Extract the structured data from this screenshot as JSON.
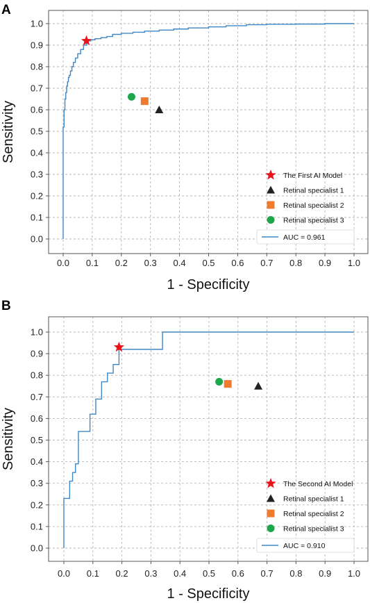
{
  "chart_data": [
    {
      "type": "line",
      "panel_label": "A",
      "xlabel": "1 - Specificity",
      "ylabel": "Sensitivity",
      "xlim": [
        0.0,
        1.0
      ],
      "ylim": [
        0.0,
        1.0
      ],
      "x_ticks": [
        "0.0",
        "0.1",
        "0.2",
        "0.3",
        "0.4",
        "0.5",
        "0.6",
        "0.7",
        "0.8",
        "0.9",
        "1.0"
      ],
      "y_ticks": [
        "0.0",
        "0.1",
        "0.2",
        "0.3",
        "0.4",
        "0.5",
        "0.6",
        "0.7",
        "0.8",
        "0.9",
        "1.0"
      ],
      "grid": true,
      "legend_position": "bottom-right",
      "roc_curve": {
        "name": "AUC = 0.961",
        "color": "#3f86c4",
        "x": [
          0.0,
          0.0,
          0.003,
          0.003,
          0.006,
          0.006,
          0.009,
          0.009,
          0.012,
          0.012,
          0.015,
          0.015,
          0.018,
          0.018,
          0.021,
          0.021,
          0.025,
          0.025,
          0.03,
          0.03,
          0.035,
          0.035,
          0.042,
          0.042,
          0.05,
          0.05,
          0.06,
          0.06,
          0.07,
          0.07,
          0.08,
          0.08,
          0.095,
          0.095,
          0.11,
          0.11,
          0.13,
          0.13,
          0.15,
          0.15,
          0.17,
          0.17,
          0.2,
          0.2,
          0.24,
          0.24,
          0.28,
          0.28,
          0.33,
          0.33,
          0.38,
          0.38,
          0.43,
          0.43,
          0.5,
          0.5,
          0.56,
          0.56,
          0.63,
          0.63,
          0.7,
          0.7,
          0.8,
          0.8,
          0.9,
          0.9,
          1.0
        ],
        "y": [
          0.0,
          0.52,
          0.52,
          0.6,
          0.6,
          0.65,
          0.65,
          0.68,
          0.68,
          0.71,
          0.71,
          0.73,
          0.73,
          0.75,
          0.75,
          0.76,
          0.76,
          0.78,
          0.78,
          0.8,
          0.8,
          0.82,
          0.82,
          0.84,
          0.84,
          0.86,
          0.86,
          0.88,
          0.88,
          0.9,
          0.9,
          0.92,
          0.92,
          0.925,
          0.925,
          0.93,
          0.93,
          0.935,
          0.935,
          0.94,
          0.94,
          0.95,
          0.95,
          0.955,
          0.955,
          0.96,
          0.96,
          0.965,
          0.965,
          0.97,
          0.97,
          0.975,
          0.975,
          0.98,
          0.98,
          0.985,
          0.985,
          0.99,
          0.99,
          0.995,
          0.995,
          0.997,
          0.997,
          0.998,
          0.998,
          1.0,
          1.0
        ]
      },
      "points": [
        {
          "name": "The First AI Model",
          "x": 0.08,
          "y": 0.92,
          "marker": "star",
          "color": "#e8141c"
        },
        {
          "name": "Retinal specialist 1",
          "x": 0.33,
          "y": 0.6,
          "marker": "triangle",
          "color": "#222222"
        },
        {
          "name": "Retinal specialist 2",
          "x": 0.28,
          "y": 0.64,
          "marker": "square",
          "color": "#ee7b30"
        },
        {
          "name": "Retinal specialist 3",
          "x": 0.235,
          "y": 0.66,
          "marker": "circle",
          "color": "#1ea64a"
        }
      ]
    },
    {
      "type": "line",
      "panel_label": "B",
      "xlabel": "1 - Specificity",
      "ylabel": "Sensitivity",
      "xlim": [
        0.0,
        1.0
      ],
      "ylim": [
        0.0,
        1.0
      ],
      "x_ticks": [
        "0.0",
        "0.1",
        "0.2",
        "0.3",
        "0.4",
        "0.5",
        "0.6",
        "0.7",
        "0.8",
        "0.9",
        "1.0"
      ],
      "y_ticks": [
        "0.0",
        "0.1",
        "0.2",
        "0.3",
        "0.4",
        "0.5",
        "0.6",
        "0.7",
        "0.8",
        "0.9",
        "1.0"
      ],
      "grid": true,
      "legend_position": "bottom-right",
      "roc_curve": {
        "name": "AUC = 0.910",
        "color": "#3f86c4",
        "x": [
          0.0,
          0.0,
          0.02,
          0.02,
          0.03,
          0.03,
          0.04,
          0.04,
          0.05,
          0.05,
          0.09,
          0.09,
          0.11,
          0.11,
          0.13,
          0.13,
          0.15,
          0.15,
          0.17,
          0.17,
          0.19,
          0.19,
          0.34,
          0.34,
          1.0
        ],
        "y": [
          0.0,
          0.23,
          0.23,
          0.31,
          0.31,
          0.35,
          0.35,
          0.39,
          0.39,
          0.54,
          0.54,
          0.62,
          0.62,
          0.69,
          0.69,
          0.77,
          0.77,
          0.81,
          0.81,
          0.85,
          0.85,
          0.92,
          0.92,
          1.0,
          1.0
        ]
      },
      "points": [
        {
          "name": "The Second AI Model",
          "x": 0.19,
          "y": 0.93,
          "marker": "star",
          "color": "#e8141c"
        },
        {
          "name": "Retinal specialist 1",
          "x": 0.67,
          "y": 0.75,
          "marker": "triangle",
          "color": "#222222"
        },
        {
          "name": "Retinal specialist 2",
          "x": 0.565,
          "y": 0.76,
          "marker": "square",
          "color": "#ee7b30"
        },
        {
          "name": "Retinal specialist 3",
          "x": 0.535,
          "y": 0.77,
          "marker": "circle",
          "color": "#1ea64a"
        }
      ]
    }
  ]
}
